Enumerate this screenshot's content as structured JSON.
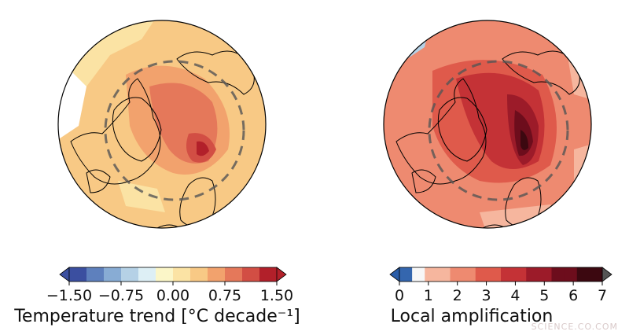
{
  "colors": {
    "trend": [
      "#3b4fa0",
      "#5e80bd",
      "#88acd4",
      "#b5d1e6",
      "#ddeff5",
      "#fbf6c8",
      "#fbe3a4",
      "#f8c985",
      "#f2a26d",
      "#e5785a",
      "#d24e44",
      "#b2202a"
    ],
    "amp": [
      "#3466ae",
      "#f7f7f7",
      "#f6b69e",
      "#ee8a70",
      "#df5a4b",
      "#c43236",
      "#9c1b29",
      "#6d0d1c",
      "#3c0810"
    ],
    "amp_under": "#2a5da8",
    "amp_over": "#555555",
    "coast": "#000000",
    "circle": "#555555"
  },
  "maps": [
    {
      "variable": "Temperature trend",
      "colorbar": {
        "ticks": [
          "−1.50",
          "−0.75",
          "0.00",
          "0.75",
          "1.50"
        ],
        "title": "Temperature trend [°C decade⁻¹]",
        "extend": "both"
      }
    },
    {
      "variable": "Local amplification",
      "colorbar": {
        "ticks": [
          "0",
          "1",
          "2",
          "3",
          "4",
          "5",
          "6",
          "7"
        ],
        "title": "Local amplification",
        "extend": "both"
      }
    }
  ],
  "watermark": "SCIENCE.CO.COM"
}
